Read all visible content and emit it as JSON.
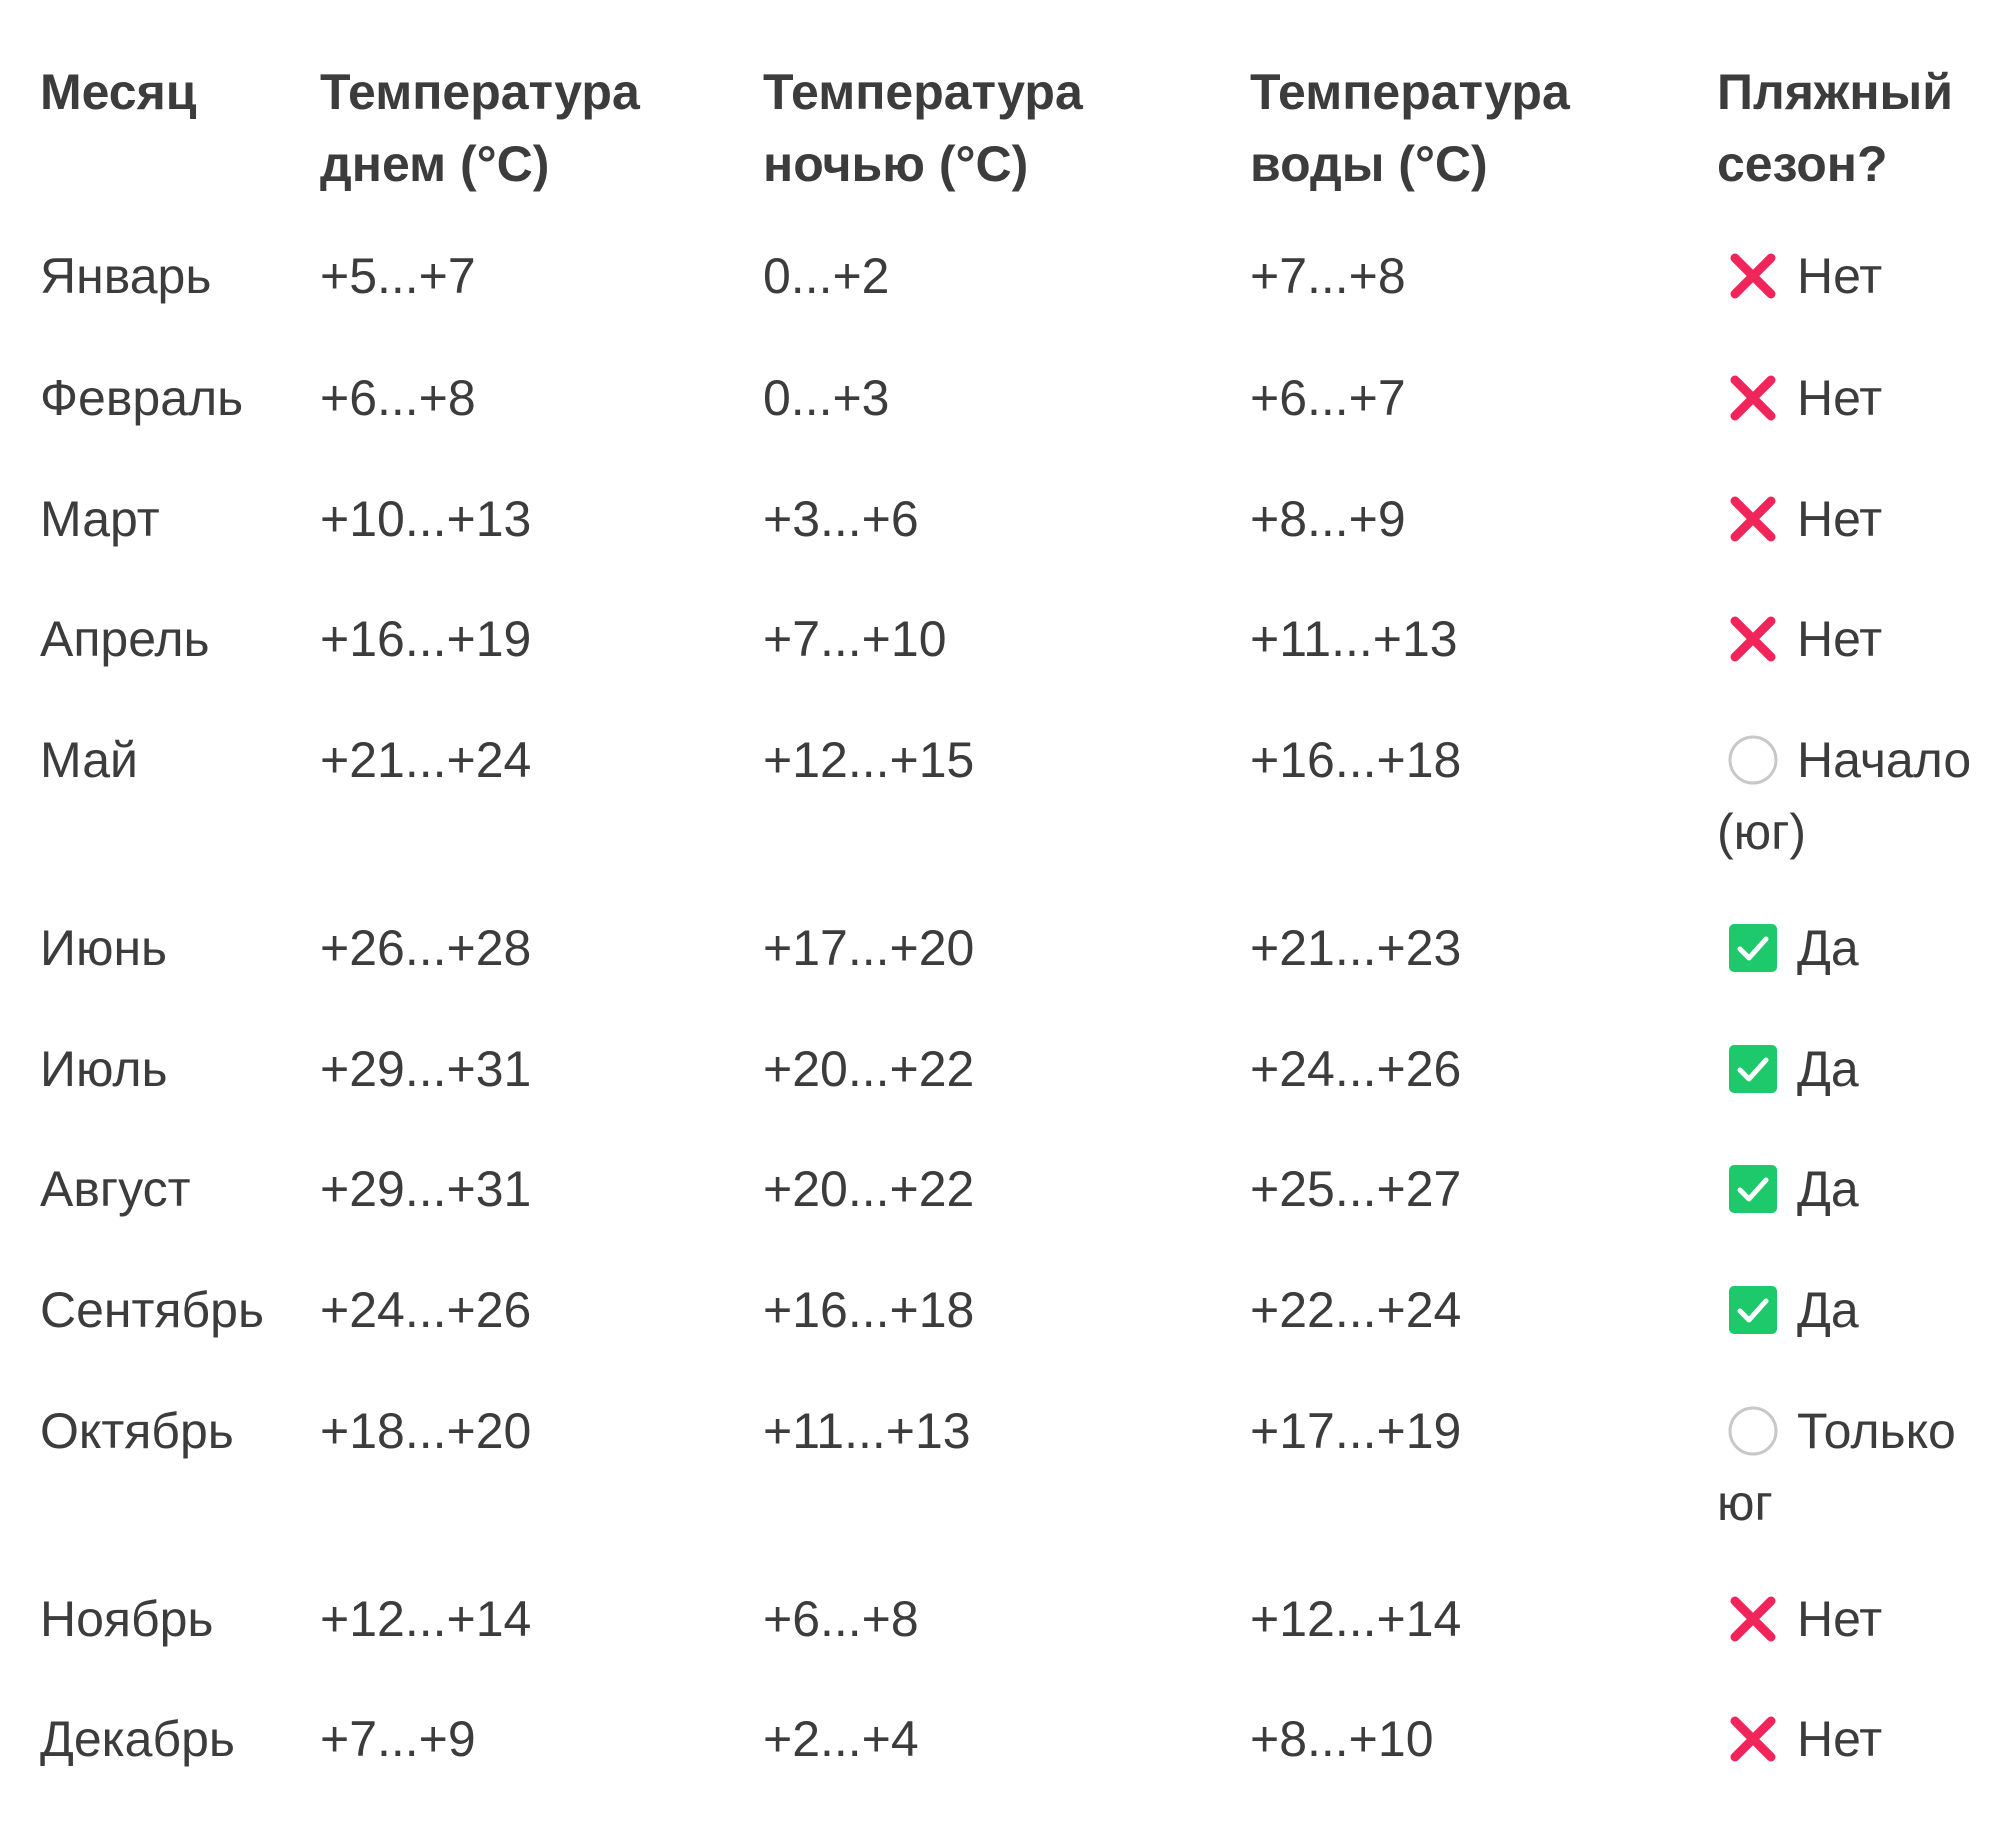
{
  "table": {
    "headers": {
      "month": "Месяц",
      "day_temp_line1": "Температура",
      "day_temp_line2": "днем (°C)",
      "night_temp_line1": "Температура",
      "night_temp_line2": "ночью (°C)",
      "water_temp_line1": "Температура",
      "water_temp_line2": "воды (°C)",
      "beach_line1": "Пляжный",
      "beach_line2": "сезон?"
    },
    "rows": [
      {
        "month": "Январь",
        "day": "+5...+7",
        "night": "0...+2",
        "water": "+7...+8",
        "beach_icon": "cross-icon",
        "beach": "Нет"
      },
      {
        "month": "Февраль",
        "day": "+6...+8",
        "night": "0...+3",
        "water": "+6...+7",
        "beach_icon": "cross-icon",
        "beach": "Нет"
      },
      {
        "month": "Март",
        "day": "+10...+13",
        "night": "+3...+6",
        "water": "+8...+9",
        "beach_icon": "cross-icon",
        "beach": "Нет"
      },
      {
        "month": "Апрель",
        "day": "+16...+19",
        "night": "+7...+10",
        "water": "+11...+13",
        "beach_icon": "cross-icon",
        "beach": "Нет"
      },
      {
        "month": "Май",
        "day": "+21...+24",
        "night": "+12...+15",
        "water": "+16...+18",
        "beach_icon": "circle-icon",
        "beach": "Начало (юг)"
      },
      {
        "month": "Июнь",
        "day": "+26...+28",
        "night": "+17...+20",
        "water": "+21...+23",
        "beach_icon": "check-icon",
        "beach": "Да"
      },
      {
        "month": "Июль",
        "day": "+29...+31",
        "night": "+20...+22",
        "water": "+24...+26",
        "beach_icon": "check-icon",
        "beach": "Да"
      },
      {
        "month": "Август",
        "day": "+29...+31",
        "night": "+20...+22",
        "water": "+25...+27",
        "beach_icon": "check-icon",
        "beach": "Да"
      },
      {
        "month": "Сентябрь",
        "day": "+24...+26",
        "night": "+16...+18",
        "water": "+22...+24",
        "beach_icon": "check-icon",
        "beach": "Да"
      },
      {
        "month": "Октябрь",
        "day": "+18...+20",
        "night": "+11...+13",
        "water": "+17...+19",
        "beach_icon": "circle-icon",
        "beach": "Только юг"
      },
      {
        "month": "Ноябрь",
        "day": "+12...+14",
        "night": "+6...+8",
        "water": "+12...+14",
        "beach_icon": "cross-icon",
        "beach": "Нет"
      },
      {
        "month": "Декабрь",
        "day": "+7...+9",
        "night": "+2...+4",
        "water": "+8...+10",
        "beach_icon": "cross-icon",
        "beach": "Нет"
      }
    ]
  },
  "colors": {
    "text": "#3c3c3c",
    "cross": "#f0255a",
    "check_bg": "#1ec96b",
    "circle_border": "#c8c8c8"
  }
}
